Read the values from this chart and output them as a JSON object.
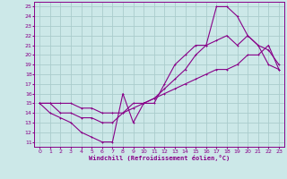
{
  "xlabel": "Windchill (Refroidissement éolien,°C)",
  "bg_color": "#cce8e8",
  "grid_color": "#aacccc",
  "line_color": "#880088",
  "spine_color": "#880088",
  "xlim": [
    -0.5,
    23.5
  ],
  "ylim": [
    10.5,
    25.5
  ],
  "xticks": [
    0,
    1,
    2,
    3,
    4,
    5,
    6,
    7,
    8,
    9,
    10,
    11,
    12,
    13,
    14,
    15,
    16,
    17,
    18,
    19,
    20,
    21,
    22,
    23
  ],
  "yticks": [
    11,
    12,
    13,
    14,
    15,
    16,
    17,
    18,
    19,
    20,
    21,
    22,
    23,
    24,
    25
  ],
  "line1_x": [
    0,
    1,
    2,
    3,
    4,
    5,
    6,
    7,
    8,
    9,
    10,
    11,
    12,
    13,
    14,
    15,
    16,
    17,
    18,
    19,
    20,
    21,
    22,
    23
  ],
  "line1_y": [
    15,
    14,
    13.5,
    13,
    12,
    11.5,
    11,
    11,
    16,
    13,
    15,
    15,
    17,
    19,
    20,
    21,
    21,
    25,
    25,
    24,
    22,
    21,
    19,
    18.5
  ],
  "line2_x": [
    0,
    1,
    2,
    3,
    4,
    5,
    6,
    7,
    8,
    9,
    10,
    11,
    12,
    13,
    14,
    15,
    16,
    17,
    18,
    19,
    20,
    21,
    22,
    23
  ],
  "line2_y": [
    15,
    15,
    14,
    14,
    13.5,
    13.5,
    13,
    13,
    14,
    15,
    15,
    15.5,
    16.5,
    17.5,
    18.5,
    20,
    21,
    21.5,
    22,
    21,
    22,
    21,
    20.5,
    19
  ],
  "line3_x": [
    0,
    1,
    2,
    3,
    4,
    5,
    6,
    7,
    8,
    9,
    10,
    11,
    12,
    13,
    14,
    15,
    16,
    17,
    18,
    19,
    20,
    21,
    22,
    23
  ],
  "line3_y": [
    15,
    15,
    15,
    15,
    14.5,
    14.5,
    14,
    14,
    14,
    14.5,
    15,
    15.5,
    16,
    16.5,
    17,
    17.5,
    18,
    18.5,
    18.5,
    19,
    20,
    20,
    21,
    18.5
  ]
}
